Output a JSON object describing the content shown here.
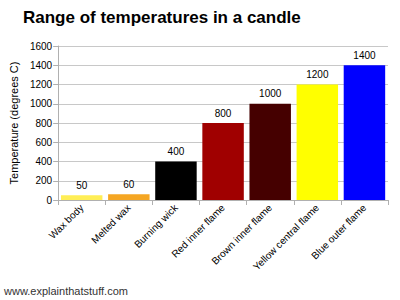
{
  "chart_data": {
    "type": "bar",
    "title": "Range of temperatures in a candle",
    "ylabel": "Temperature (degrees C)",
    "categories": [
      "Wax body",
      "Melted wax",
      "Burning wick",
      "Red inner flame",
      "Brown inner flame",
      "Yellow central flame",
      "Blue outer flame"
    ],
    "values": [
      50,
      60,
      400,
      800,
      1000,
      1200,
      1400
    ],
    "colors": [
      "#ffee55",
      "#f5a623",
      "#000000",
      "#a00000",
      "#450000",
      "#ffff00",
      "#0000ff"
    ],
    "ylim": [
      0,
      1600
    ],
    "yticks": [
      0,
      200,
      400,
      600,
      800,
      1000,
      1200,
      1400,
      1600
    ],
    "grid": true,
    "data_labels": true,
    "annotations": [
      "www.explainthatstuff.com"
    ]
  }
}
